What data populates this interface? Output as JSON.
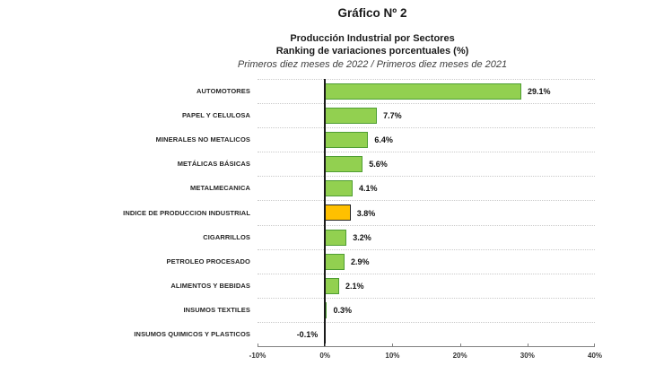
{
  "header": {
    "title": "Gráfico Nº 2",
    "subtitle_line1": "Producción Industrial por Sectores",
    "subtitle_line2": "Ranking de variaciones porcentuales (%)",
    "subtitle_line3": "Primeros diez meses de 2022 / Primeros diez meses de 2021"
  },
  "chart_data": {
    "type": "bar",
    "orientation": "horizontal",
    "title": "Gráfico Nº 2",
    "subtitle": "Producción Industrial por Sectores — Ranking de variaciones porcentuales (%)",
    "period_note": "Primeros diez meses de 2022 / Primeros diez meses de 2021",
    "categories": [
      "AUTOMOTORES",
      "PAPEL Y CELULOSA",
      "MINERALES NO METALICOS",
      "METÁLICAS BÁSICAS",
      "METALMECANICA",
      "INDICE DE PRODUCCION INDUSTRIAL",
      "CIGARRILLOS",
      "PETROLEO PROCESADO",
      "ALIMENTOS Y BEBIDAS",
      "INSUMOS TEXTILES",
      "INSUMOS QUIMICOS Y PLASTICOS"
    ],
    "values": [
      29.1,
      7.7,
      6.4,
      5.6,
      4.1,
      3.8,
      3.2,
      2.9,
      2.1,
      0.3,
      -0.1
    ],
    "value_labels": [
      "29.1%",
      "7.7%",
      "6.4%",
      "5.6%",
      "4.1%",
      "3.8%",
      "3.2%",
      "2.9%",
      "2.1%",
      "0.3%",
      "-0.1%"
    ],
    "xlabel": "",
    "ylabel": "",
    "xlim": [
      -10,
      40
    ],
    "xticks": [
      {
        "value": -10,
        "label": "-10%"
      },
      {
        "value": 0,
        "label": "0%"
      },
      {
        "value": 10,
        "label": "10%"
      },
      {
        "value": 20,
        "label": "20%"
      },
      {
        "value": 30,
        "label": "30%"
      },
      {
        "value": 40,
        "label": "40%"
      }
    ],
    "grid": true,
    "legend": false,
    "highlight_index": 5,
    "colors": {
      "bar_fill": "#92D050",
      "bar_border": "#4F9E33",
      "highlight_fill": "#FFC000",
      "highlight_border": "#262626",
      "zero_axis": "#1a1a1a",
      "gridline": "#c9c9c9",
      "axis_line": "#808080"
    }
  }
}
